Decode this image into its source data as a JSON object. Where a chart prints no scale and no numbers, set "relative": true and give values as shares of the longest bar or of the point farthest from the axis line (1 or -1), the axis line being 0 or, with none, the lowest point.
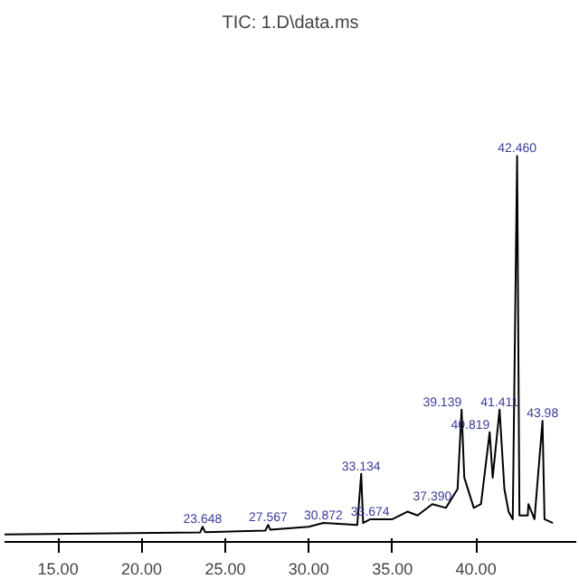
{
  "chart_data": {
    "type": "line",
    "title": "TIC: 1.D\\data.ms",
    "relative": true,
    "x": [
      11.8,
      23.5,
      23.648,
      23.8,
      27.4,
      27.567,
      27.7,
      30.0,
      30.872,
      32.9,
      33.134,
      33.25,
      33.674,
      35.0,
      35.9,
      36.5,
      37.39,
      38.2,
      38.9,
      39.139,
      39.3,
      39.87,
      40.3,
      40.819,
      41.0,
      41.411,
      41.7,
      41.95,
      42.2,
      42.46,
      42.6,
      43.1,
      43.135,
      43.5,
      43.98,
      44.1,
      44.6
    ],
    "series": [
      {
        "color": "#000000",
        "values": [
          0,
          0.005,
          0.02,
          0.006,
          0.01,
          0.025,
          0.012,
          0.02,
          0.03,
          0.025,
          0.16,
          0.03,
          0.04,
          0.04,
          0.06,
          0.05,
          0.08,
          0.07,
          0.12,
          0.33,
          0.15,
          0.07,
          0.08,
          0.27,
          0.15,
          0.33,
          0.12,
          0.06,
          0.04,
          1.0,
          0.05,
          0.05,
          0.08,
          0.04,
          0.3,
          0.04,
          0.03
        ]
      }
    ],
    "xlim": [
      11.8,
      46
    ],
    "xticks": [
      {
        "value": 15,
        "label": "15.00"
      },
      {
        "value": 20,
        "label": "20.00"
      },
      {
        "value": 25,
        "label": "25.00"
      },
      {
        "value": 30,
        "label": "30.00"
      },
      {
        "value": 35,
        "label": "35.00"
      },
      {
        "value": 40,
        "label": "40.00"
      }
    ],
    "annotations": [
      {
        "text": "23.648",
        "x": 23.648,
        "y": 0.02
      },
      {
        "text": "27.567",
        "x": 27.567,
        "y": 0.025
      },
      {
        "text": "30.872",
        "x": 30.872,
        "y": 0.03
      },
      {
        "text": "33.134",
        "x": 33.134,
        "y": 0.16
      },
      {
        "text": "33.674",
        "x": 33.674,
        "y": 0.04
      },
      {
        "text": "37.390",
        "x": 37.39,
        "y": 0.08
      },
      {
        "text": "39.139",
        "x": 39.139,
        "y": 0.33
      },
      {
        "text": "40.819",
        "x": 40.819,
        "y": 0.27
      },
      {
        "text": "41.411",
        "x": 41.411,
        "y": 0.33
      },
      {
        "text": "42.460",
        "x": 42.46,
        "y": 1.0
      },
      {
        "text": "43.98",
        "x": 43.98,
        "y": 0.3
      }
    ],
    "grid": false
  }
}
